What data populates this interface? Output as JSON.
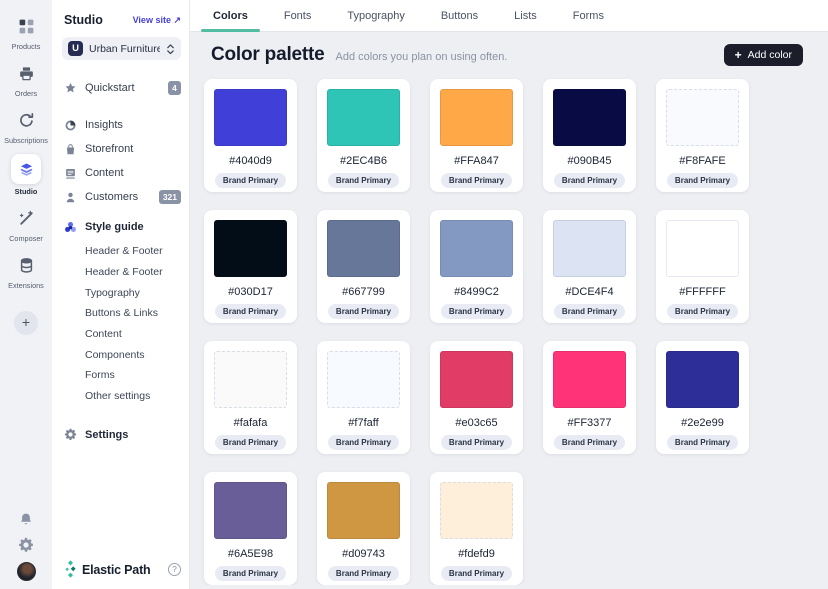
{
  "rail": {
    "items": [
      {
        "label": "Products",
        "icon": "products-icon"
      },
      {
        "label": "Orders",
        "icon": "orders-icon"
      },
      {
        "label": "Subscriptions",
        "icon": "subscriptions-icon"
      },
      {
        "label": "Studio",
        "icon": "studio-icon",
        "active": true
      },
      {
        "label": "Composer",
        "icon": "composer-icon"
      },
      {
        "label": "Extensions",
        "icon": "extensions-icon"
      }
    ],
    "add_label": "+",
    "bottom_icons": [
      {
        "name": "bell-icon"
      },
      {
        "name": "gear-icon"
      },
      {
        "name": "user-avatar"
      }
    ]
  },
  "sidebar": {
    "title": "Studio",
    "view_site": "View site ↗",
    "store": {
      "initial": "U",
      "name": "Urban Furniture"
    },
    "nav": [
      {
        "label": "Quickstart",
        "icon": "star-icon",
        "badge": "4",
        "group_end": true
      },
      {
        "label": "Insights",
        "icon": "insights-icon"
      },
      {
        "label": "Storefront",
        "icon": "storefront-icon"
      },
      {
        "label": "Content",
        "icon": "content-icon"
      },
      {
        "label": "Customers",
        "icon": "customers-icon",
        "badge": "321"
      },
      {
        "label": "Style guide",
        "icon": "style-guide-icon",
        "active": true
      }
    ],
    "subnav": [
      "Header & Footer",
      "Header & Footer",
      "Typography",
      "Buttons & Links",
      "Content",
      "Components",
      "Forms",
      "Other settings"
    ],
    "settings_label": "Settings",
    "brand": "Elastic Path",
    "help_label": "?"
  },
  "tabs": [
    {
      "label": "Colors",
      "active": true
    },
    {
      "label": "Fonts"
    },
    {
      "label": "Typography"
    },
    {
      "label": "Buttons"
    },
    {
      "label": "Lists"
    },
    {
      "label": "Forms"
    }
  ],
  "content": {
    "title": "Color palette",
    "subtitle": "Add colors you plan on using often.",
    "add_button": {
      "plus": "+",
      "label": "Add color"
    },
    "tag_label": "Brand Primary",
    "colors": [
      "#4040d9",
      "#2EC4B6",
      "#FFA847",
      "#090B45",
      "#F8FAFE",
      "#030D17",
      "#667799",
      "#8499C2",
      "#DCE4F4",
      "#FFFFFF",
      "#fafafa",
      "#f7faff",
      "#e03c65",
      "#FF3377",
      "#2e2e99",
      "#6A5E98",
      "#d09743",
      "#fdefd9"
    ]
  },
  "theme": {
    "accent_green": "#53BDA1",
    "link_indigo": "#4741D6",
    "active_icon_blue": "#4656E8",
    "button_dark": "#1B1D2B",
    "badge_gray": "#8A92A6"
  }
}
